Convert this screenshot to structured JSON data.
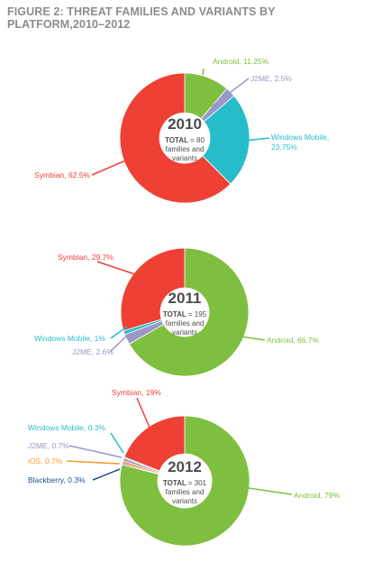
{
  "title": "FIGURE 2: THREAT FAMILIES AND VARIANTS BY PLATFORM,2010–2012",
  "colors": {
    "Android": "#7fbf3f",
    "Symbian": "#ee4035",
    "Windows Mobile": "#27bcc9",
    "J2ME": "#9b97c9",
    "iOS": "#f29a2e",
    "Blackberry": "#1f4e8c",
    "title": "#8a8c8f",
    "center_text": "#4d4d4f"
  },
  "chart_data": [
    {
      "type": "pie",
      "variant": "donut",
      "year": "2010",
      "total_prefix": "TOTAL",
      "total_value": "= 80",
      "total_line2": "families and",
      "total_line3": "variants",
      "slices": [
        {
          "name": "Android",
          "value": 11.25,
          "label": "Android, 11.25%"
        },
        {
          "name": "J2ME",
          "value": 2.5,
          "label": "J2ME, 2.5%"
        },
        {
          "name": "Windows Mobile",
          "value": 23.75,
          "label": "Windows Mobile,",
          "label2": "23.75%"
        },
        {
          "name": "Symbian",
          "value": 62.5,
          "label": "Symbian, 62.5%"
        }
      ]
    },
    {
      "type": "pie",
      "variant": "donut",
      "year": "2011",
      "total_prefix": "TOTAL",
      "total_value": "= 195",
      "total_line2": "families and",
      "total_line3": "variants",
      "slices": [
        {
          "name": "Android",
          "value": 66.7,
          "label": "Android, 66.7%"
        },
        {
          "name": "J2ME",
          "value": 2.6,
          "label": "J2ME, 2.6%"
        },
        {
          "name": "Windows Mobile",
          "value": 1,
          "label": "Windows Mobile, 1%"
        },
        {
          "name": "Symbian",
          "value": 29.7,
          "label": "Symbian, 29.7%"
        }
      ]
    },
    {
      "type": "pie",
      "variant": "donut",
      "year": "2012",
      "total_prefix": "TOTAL",
      "total_value": "= 301",
      "total_line2": "families and",
      "total_line3": "variants",
      "slices": [
        {
          "name": "Android",
          "value": 79,
          "label": "Android, 79%"
        },
        {
          "name": "Blackberry",
          "value": 0.3,
          "label": "Blackberry, 0.3%"
        },
        {
          "name": "iOS",
          "value": 0.7,
          "label": "iOS, 0.7%"
        },
        {
          "name": "J2ME",
          "value": 0.7,
          "label": "J2ME, 0.7%"
        },
        {
          "name": "Windows Mobile",
          "value": 0.3,
          "label": "Windows Mobile, 0.3%"
        },
        {
          "name": "Symbian",
          "value": 19,
          "label": "Symbian, 19%"
        }
      ]
    }
  ]
}
